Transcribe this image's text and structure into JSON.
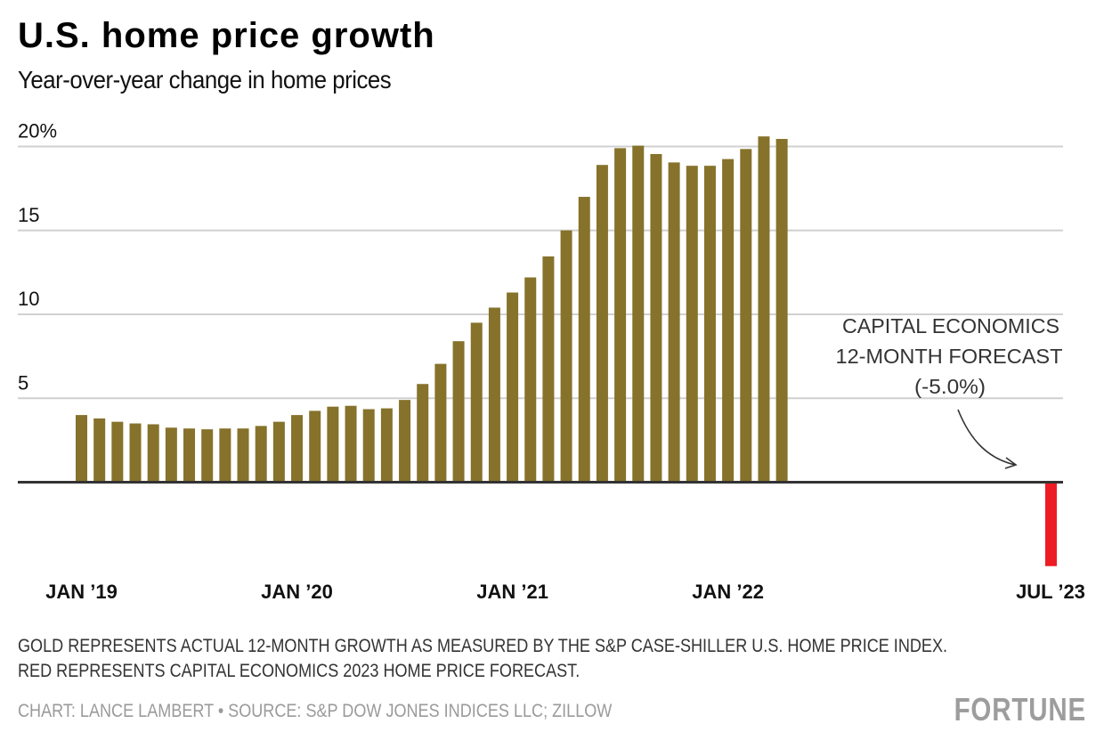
{
  "header": {
    "title": "U.S. home price growth",
    "subtitle": "Year-over-year change in home prices"
  },
  "chart_data": {
    "type": "bar",
    "title": "U.S. home price growth",
    "subtitle": "Year-over-year change in home prices",
    "xlabel": "",
    "ylabel": "",
    "ylim": [
      -5,
      20
    ],
    "grid": true,
    "y_ticks": [
      {
        "value": 20,
        "label": "20%"
      },
      {
        "value": 15,
        "label": "15"
      },
      {
        "value": 10,
        "label": "10"
      },
      {
        "value": 5,
        "label": "5"
      }
    ],
    "x_ticks": [
      {
        "index": 0,
        "label": "JAN ’19"
      },
      {
        "index": 12,
        "label": "JAN ’20"
      },
      {
        "index": 24,
        "label": "JAN ’21"
      },
      {
        "index": 36,
        "label": "JAN ’22"
      },
      {
        "index": 54,
        "label": "JUL ’23"
      }
    ],
    "series": [
      {
        "name": "Actual 12-month growth (S&P Case-Shiller U.S. Home Price Index)",
        "color": "#86722b",
        "start_index": 0,
        "values": [
          4.0,
          3.8,
          3.6,
          3.5,
          3.45,
          3.25,
          3.2,
          3.15,
          3.2,
          3.2,
          3.35,
          3.6,
          4.0,
          4.25,
          4.5,
          4.55,
          4.35,
          4.4,
          4.9,
          5.85,
          7.05,
          8.4,
          9.5,
          10.4,
          11.3,
          12.2,
          13.45,
          15.0,
          17.0,
          18.9,
          19.9,
          20.05,
          19.55,
          19.05,
          18.85,
          18.85,
          19.25,
          19.85,
          20.6,
          20.45
        ]
      },
      {
        "name": "Capital Economics 2023 home price forecast",
        "color": "#ed1c24",
        "start_index": 54,
        "values": [
          -5.0
        ]
      }
    ],
    "annotation": {
      "lines": [
        "CAPITAL ECONOMICS",
        "12-MONTH FORECAST",
        "(-5.0%)"
      ]
    }
  },
  "footer": {
    "note_line1": "GOLD REPRESENTS ACTUAL 12-MONTH GROWTH AS MEASURED BY THE S&P CASE-SHILLER U.S. HOME PRICE INDEX.",
    "note_line2": "RED REPRESENTS CAPITAL ECONOMICS 2023 HOME PRICE FORECAST.",
    "credit": "CHART: LANCE LAMBERT • SOURCE: S&P DOW JONES INDICES LLC; ZILLOW",
    "logo": "FORTUNE"
  }
}
